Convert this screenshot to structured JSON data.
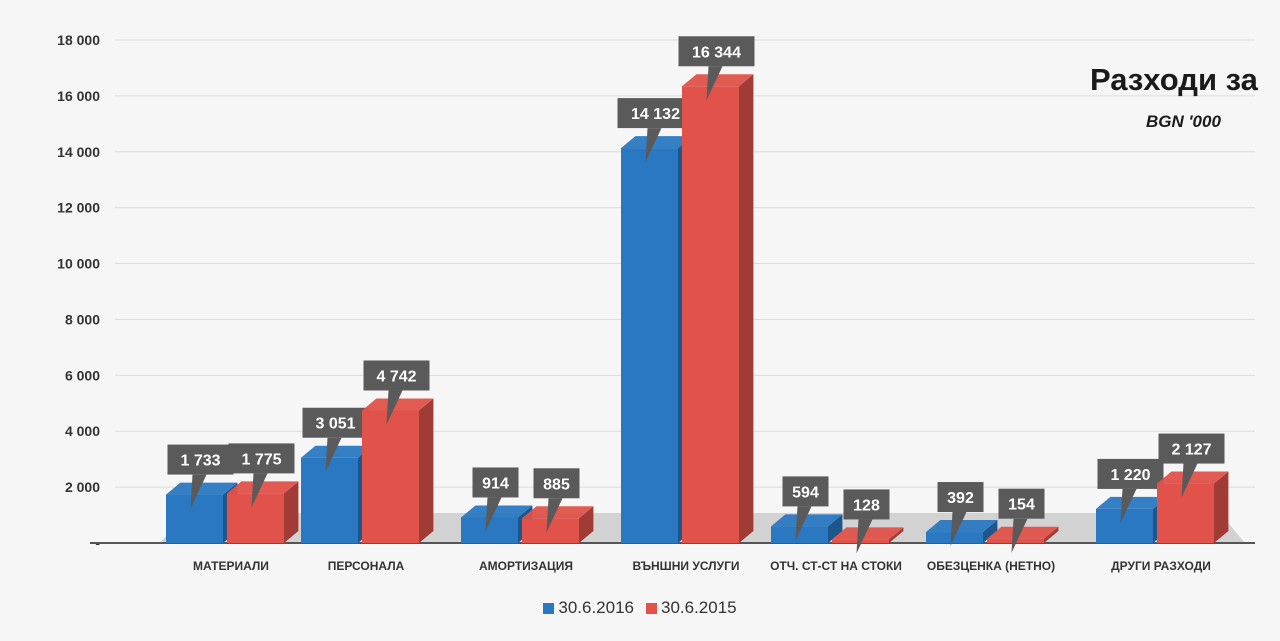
{
  "colors": {
    "s2016": "#2a78c2",
    "s2015": "#e0524a",
    "label_box": "#5a5a5a",
    "grid": "#dcdcdc",
    "floor": "#c9c9c9"
  },
  "chart_data": {
    "type": "bar",
    "title": "Разходи за",
    "subtitle": "BGN '000",
    "categories": [
      "МАТЕРИАЛИ",
      "ПЕРСОНАЛА",
      "АМОРТИЗАЦИЯ",
      "ВЪНШНИ УСЛУГИ",
      "ОТЧ. СТ-СТ НА СТОКИ",
      "ОБЕЗЦЕНКА (НЕТНО)",
      "ДРУГИ РАЗХОДИ"
    ],
    "series": [
      {
        "name": "30.6.2016",
        "values": [
          1733,
          3051,
          914,
          14132,
          594,
          392,
          1220
        ],
        "labels": [
          "1 733",
          "3 051",
          "914",
          "14 132",
          "594",
          "392",
          "1 220"
        ]
      },
      {
        "name": "30.6.2015",
        "values": [
          1775,
          4742,
          885,
          16344,
          128,
          154,
          2127
        ],
        "labels": [
          "1 775",
          "4 742",
          "885",
          "16 344",
          "128",
          "154",
          "2 127"
        ]
      }
    ],
    "yticks": [
      "-",
      "2 000",
      "4 000",
      "6 000",
      "8 000",
      "10 000",
      "12 000",
      "14 000",
      "16 000",
      "18 000"
    ],
    "ylim": [
      0,
      18000
    ],
    "grid": true,
    "legend_position": "bottom"
  }
}
